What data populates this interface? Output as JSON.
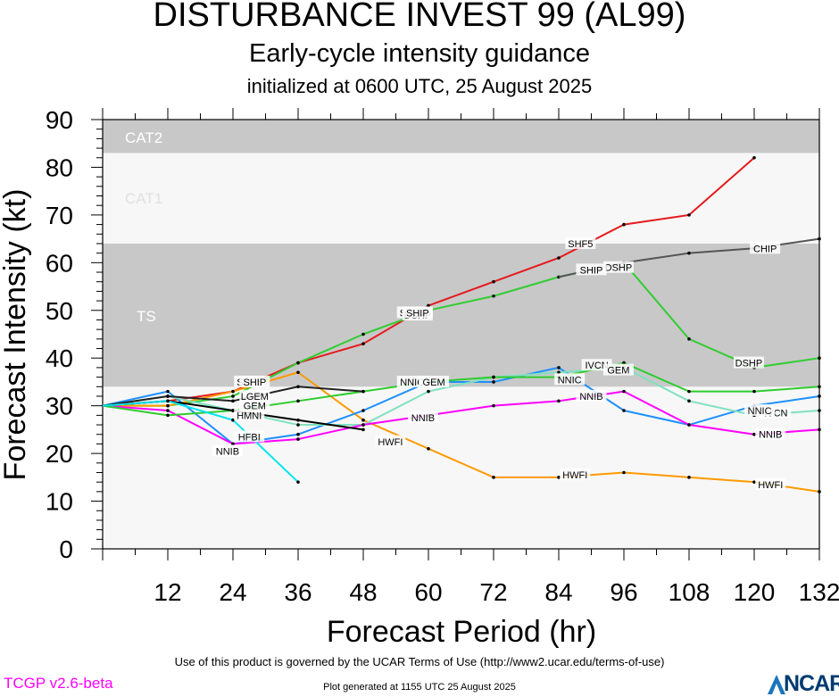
{
  "header": {
    "title": "DISTURBANCE INVEST 99 (AL99)",
    "subtitle": "Early-cycle intensity guidance",
    "init": "initialized at 0600 UTC, 25 August 2025"
  },
  "footer": {
    "terms": "Use of this product is governed by the UCAR Terms of Use (http://www2.ucar.edu/terms-of-use)",
    "generated": "Plot generated at 1155 UTC   25 August 2025",
    "version": "TCGP v2.6-beta",
    "logo": "NCAR"
  },
  "colors": {
    "cat_band": "#c8c8c8",
    "light_band": "#f7f7f7",
    "band_text": "#ffffff",
    "cat1_text": "#e0e0e0"
  },
  "chart_data": {
    "type": "line",
    "title": "DISTURBANCE INVEST 99 (AL99)",
    "xlabel": "Forecast Period (hr)",
    "ylabel": "Forecast Intensity (kt)",
    "xlim": [
      0,
      132
    ],
    "ylim": [
      0,
      90
    ],
    "xticks": [
      12,
      24,
      36,
      48,
      60,
      72,
      84,
      96,
      108,
      120,
      132
    ],
    "yticks": [
      0,
      10,
      20,
      30,
      40,
      50,
      60,
      70,
      80,
      90
    ],
    "bands": [
      {
        "name": "TS",
        "y0": 34,
        "y1": 64,
        "shade": "dark"
      },
      {
        "name": "CAT1",
        "y0": 64,
        "y1": 83,
        "shade": "light"
      },
      {
        "name": "CAT2",
        "y0": 83,
        "y1": 90,
        "shade": "dark"
      }
    ],
    "series": [
      {
        "name": "SHF5",
        "color": "#e41a1c",
        "x": [
          0,
          12,
          24,
          36,
          48,
          60,
          72,
          84,
          96,
          108,
          120
        ],
        "y": [
          30,
          31,
          33,
          39,
          43,
          51,
          56,
          61,
          68,
          70,
          82
        ],
        "labels": [
          {
            "x": 27,
            "y": 35
          },
          {
            "x": 57,
            "y": 49.5
          },
          {
            "x": 88,
            "y": 64
          }
        ]
      },
      {
        "name": "DSHP",
        "color": "#33cc33",
        "x": [
          0,
          12,
          24,
          36,
          48,
          60,
          72,
          84,
          96,
          108,
          120,
          132
        ],
        "y": [
          30,
          30,
          32,
          39,
          45,
          50,
          53,
          57,
          60,
          44,
          38,
          40
        ],
        "labels": [
          {
            "x": 58,
            "y": 49
          },
          {
            "x": 95,
            "y": 59
          },
          {
            "x": 119,
            "y": 39
          }
        ]
      },
      {
        "name": "SHIP",
        "color": "#33cc33",
        "x": [],
        "y": [],
        "labels": [
          {
            "x": 28,
            "y": 35
          },
          {
            "x": 58,
            "y": 49.5
          },
          {
            "x": 90,
            "y": 58.5
          }
        ]
      },
      {
        "name": "CHIP",
        "color": "#555555",
        "x": [
          84,
          96,
          108,
          120,
          132
        ],
        "y": [
          57,
          60,
          62,
          63,
          65
        ],
        "labels": [
          {
            "x": 122,
            "y": 63
          }
        ]
      },
      {
        "name": "HWFI",
        "color": "#ff9900",
        "x": [
          0,
          12,
          24,
          36,
          48,
          60,
          72,
          84,
          96,
          108,
          120,
          132
        ],
        "y": [
          30,
          30,
          33,
          37,
          27,
          21,
          15,
          15,
          16,
          15,
          14,
          12
        ],
        "labels": [
          {
            "x": 53,
            "y": 22.5
          },
          {
            "x": 87,
            "y": 15.5
          },
          {
            "x": 123,
            "y": 13.5
          }
        ]
      },
      {
        "name": "IVCN",
        "color": "#1e90ff",
        "x": [
          0,
          12,
          24,
          36,
          48,
          60,
          72,
          84,
          96,
          108,
          120,
          132
        ],
        "y": [
          30,
          33,
          22,
          24,
          29,
          35,
          35,
          38,
          29,
          26,
          30,
          32
        ],
        "labels": [
          {
            "x": 91,
            "y": 38.5
          },
          {
            "x": 124,
            "y": 28.5
          }
        ]
      },
      {
        "name": "NNIC",
        "color": "#80e0c0",
        "x": [
          0,
          12,
          24,
          36,
          48,
          60,
          72,
          84,
          96,
          108,
          120,
          132
        ],
        "y": [
          30,
          32,
          29,
          26,
          26,
          33,
          36,
          37,
          38,
          31,
          28,
          29
        ],
        "labels": [
          {
            "x": 57,
            "y": 35
          },
          {
            "x": 86,
            "y": 35.5
          },
          {
            "x": 121,
            "y": 29
          }
        ]
      },
      {
        "name": "NNIB",
        "color": "#ff00ff",
        "x": [
          0,
          12,
          24,
          36,
          48,
          60,
          72,
          84,
          96,
          108,
          120,
          132
        ],
        "y": [
          30,
          29,
          22,
          23,
          26,
          28,
          30,
          31,
          33,
          26,
          24,
          25
        ],
        "labels": [
          {
            "x": 23,
            "y": 20.5
          },
          {
            "x": 59,
            "y": 27.5
          },
          {
            "x": 90,
            "y": 32
          },
          {
            "x": 123,
            "y": 24
          }
        ]
      },
      {
        "name": "GEM",
        "color": "#2ecc2e",
        "x": [
          0,
          12,
          24,
          36,
          48,
          60,
          72,
          84,
          96,
          108,
          120,
          132
        ],
        "y": [
          30,
          28,
          29,
          31,
          33,
          35,
          36,
          36,
          39,
          33,
          33,
          34
        ],
        "labels": [
          {
            "x": 28,
            "y": 30
          },
          {
            "x": 61,
            "y": 35
          },
          {
            "x": 95,
            "y": 37.5
          }
        ]
      },
      {
        "name": "HMNI",
        "color": "#000000",
        "x": [
          0,
          12,
          24,
          36,
          48
        ],
        "y": [
          30,
          31,
          29,
          27,
          25
        ],
        "labels": [
          {
            "x": 27,
            "y": 28
          }
        ]
      },
      {
        "name": "LGEM",
        "color": "#222222",
        "x": [
          0,
          12,
          24,
          36,
          48
        ],
        "y": [
          30,
          32,
          31,
          34,
          33
        ],
        "labels": [
          {
            "x": 28,
            "y": 32
          }
        ]
      },
      {
        "name": "HFBI",
        "color": "#00e5ee",
        "x": [
          0,
          12,
          24,
          36
        ],
        "y": [
          30,
          31,
          27,
          14
        ],
        "labels": [
          {
            "x": 27,
            "y": 23.5
          }
        ]
      }
    ]
  }
}
